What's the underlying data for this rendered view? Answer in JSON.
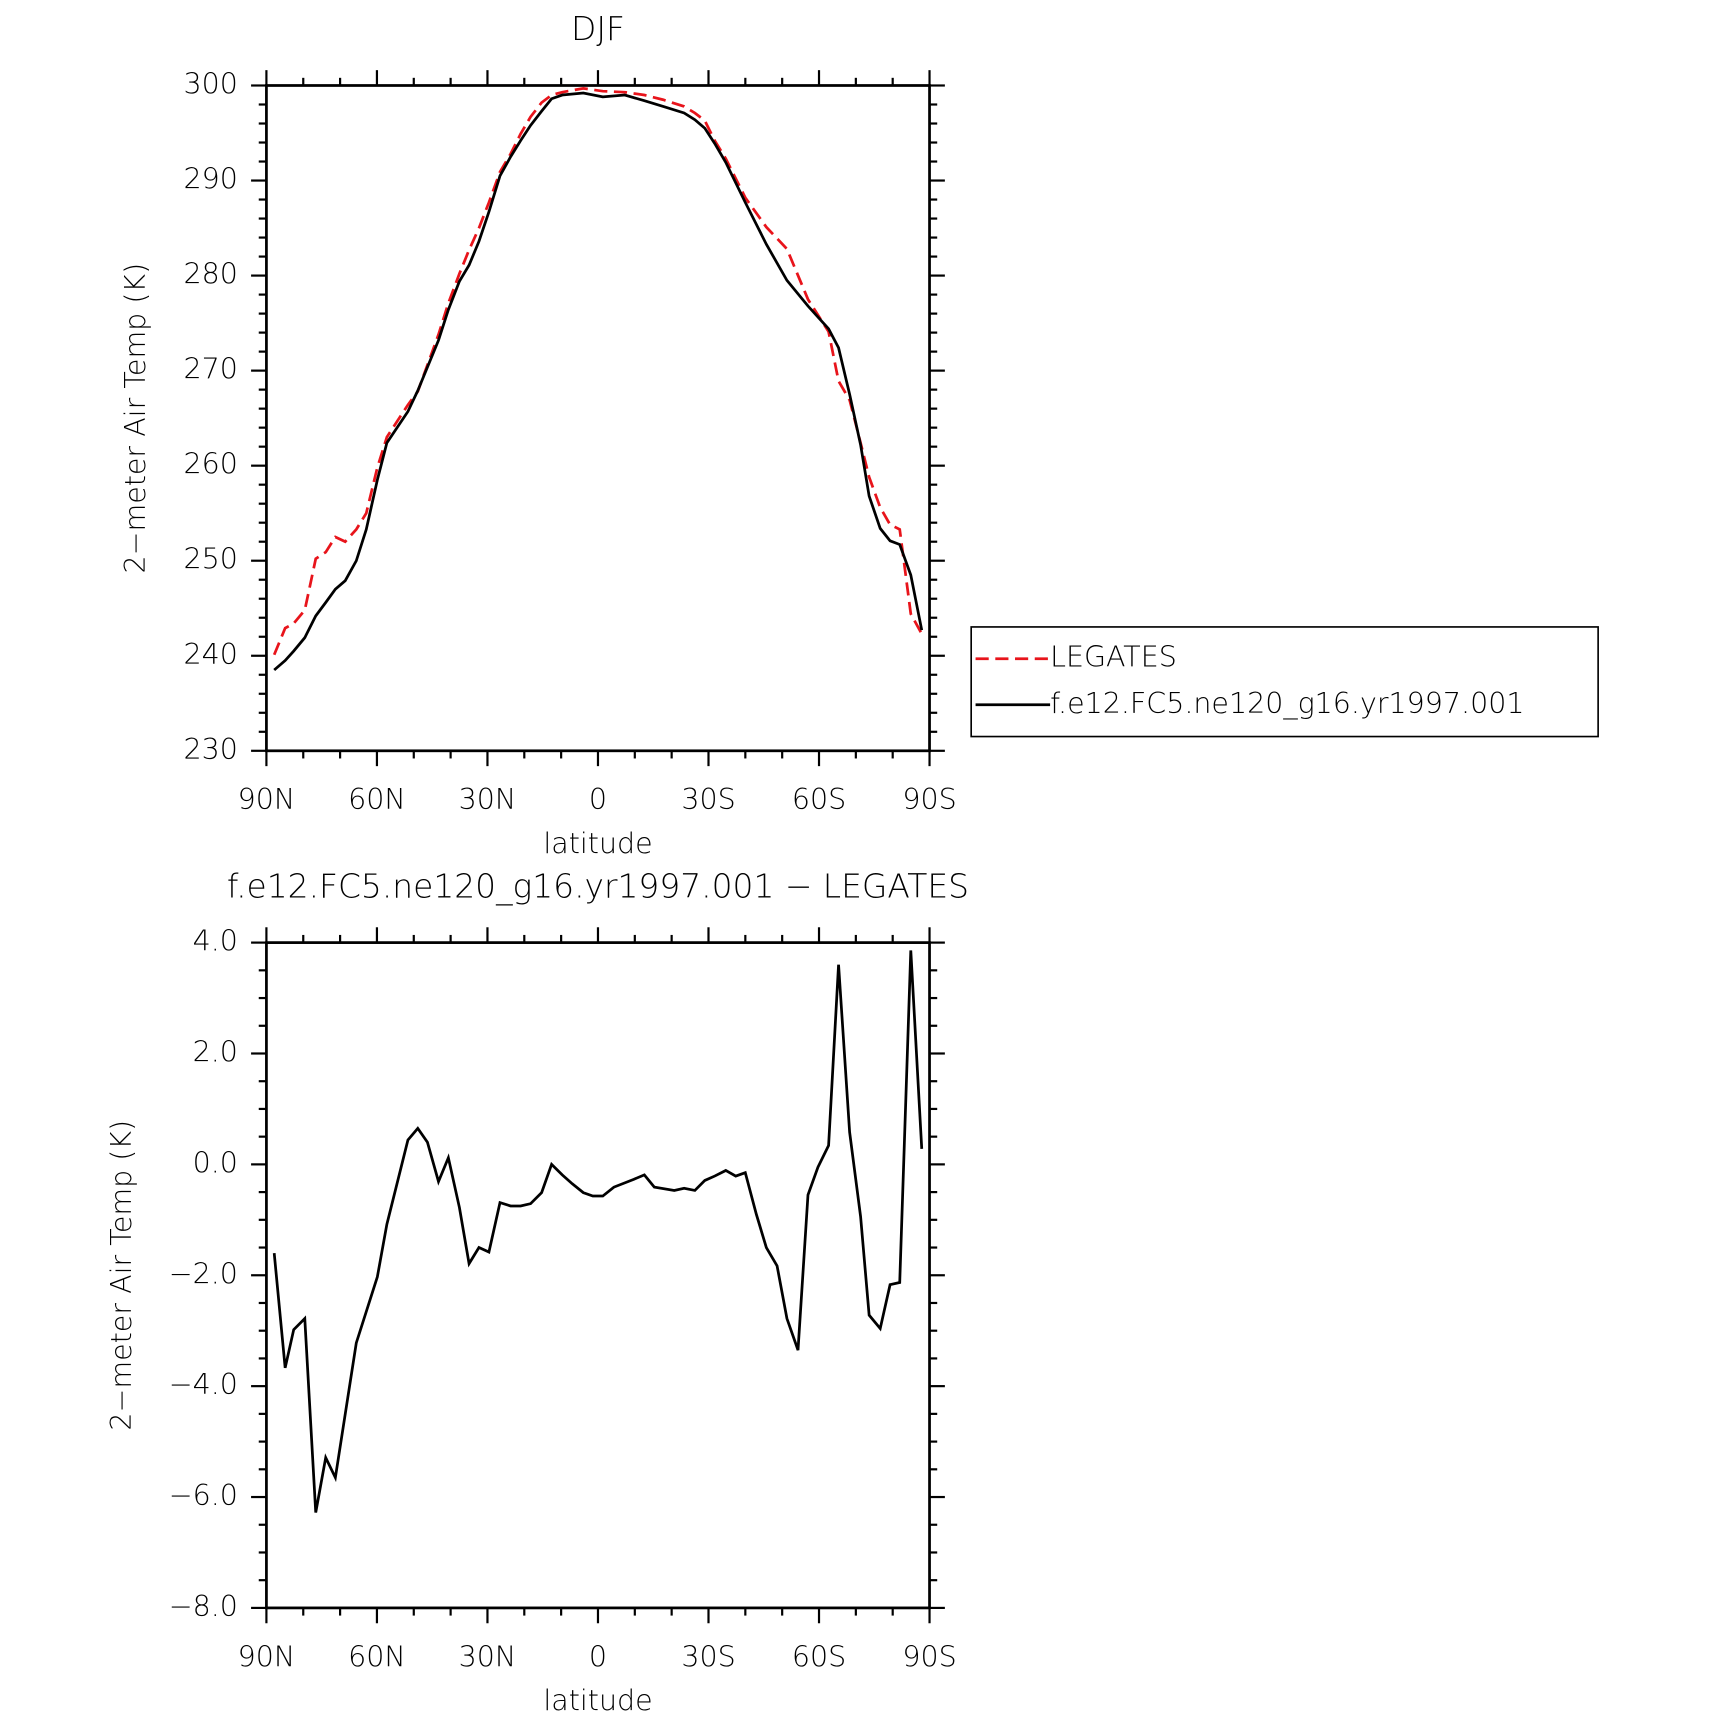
{
  "chart_data": [
    {
      "type": "line",
      "title": "DJF",
      "x_label": "latitude",
      "y_label": "2−meter Air Temp (K)",
      "xlim": [
        90,
        -90
      ],
      "xticks": [
        {
          "value": 90,
          "label": "90N"
        },
        {
          "value": 60,
          "label": "60N"
        },
        {
          "value": 30,
          "label": "30N"
        },
        0,
        {
          "value": -30,
          "label": "30S"
        },
        {
          "value": -60,
          "label": "60S"
        },
        {
          "value": -90,
          "label": "90S"
        }
      ],
      "ylim": [
        230,
        300
      ],
      "yticks": [
        230,
        240,
        250,
        260,
        270,
        280,
        290,
        300
      ],
      "legend": "right",
      "x": [
        87.9,
        84.9,
        82.6,
        79.6,
        76.6,
        73.9,
        71.3,
        68.6,
        65.6,
        62.9,
        59.9,
        57.3,
        51.6,
        48.9,
        43.3,
        40.6,
        37.6,
        35.0,
        32.3,
        29.6,
        26.6,
        23.7,
        21.0,
        18.3,
        15.3,
        12.6,
        9.7,
        4.0,
        -1.3,
        -7.3,
        -12.6,
        -17.7,
        -23.4,
        -26.3,
        -29.0,
        -31.7,
        -34.7,
        -40.0,
        -45.7,
        -51.3,
        -57.0,
        -62.6,
        -65.3,
        -68.3,
        -71.3,
        -73.6,
        -76.6,
        -79.3,
        -81.9,
        -84.9,
        -87.9
      ],
      "series": [
        {
          "name": "LEGATES",
          "color": "#e8141b",
          "linestyle": "dashed",
          "values": [
            240.1,
            242.9,
            243.4,
            244.8,
            250.2,
            250.9,
            252.5,
            252.0,
            253.3,
            255.0,
            259.8,
            263.0,
            266.4,
            267.8,
            273.8,
            277.1,
            280.2,
            282.7,
            285.0,
            287.7,
            290.9,
            292.8,
            294.9,
            296.7,
            298.2,
            299.0,
            299.3,
            299.7,
            299.4,
            299.3,
            299.0,
            298.5,
            297.8,
            297.1,
            296.3,
            294.2,
            292.3,
            288.2,
            285.1,
            282.8,
            277.5,
            274.1,
            268.9,
            266.9,
            262.4,
            258.8,
            255.6,
            253.8,
            253.3,
            244.4,
            242.3
          ]
        },
        {
          "name": "f.e12.FC5.ne120_g16.yr1997.001",
          "color": "#000000",
          "linestyle": "solid",
          "values": [
            238.5,
            239.5,
            240.5,
            241.9,
            244.2,
            245.6,
            247.0,
            247.9,
            250.0,
            253.3,
            258.5,
            262.4,
            265.7,
            267.9,
            273.2,
            276.4,
            279.4,
            281.1,
            283.6,
            286.7,
            290.5,
            292.5,
            294.2,
            295.8,
            297.3,
            298.6,
            299.0,
            299.2,
            298.8,
            299.0,
            298.4,
            297.8,
            297.1,
            296.4,
            295.5,
            293.9,
            291.9,
            287.7,
            283.3,
            279.5,
            276.8,
            274.4,
            272.4,
            267.5,
            262.2,
            256.8,
            253.4,
            252.1,
            251.7,
            248.5,
            242.7
          ]
        }
      ]
    },
    {
      "type": "line",
      "title": "f.e12.FC5.ne120_g16.yr1997.001 − LEGATES",
      "x_label": "latitude",
      "y_label": "2−meter Air Temp (K)",
      "xlim": [
        90,
        -90
      ],
      "xticks": [
        {
          "value": 90,
          "label": "90N"
        },
        {
          "value": 60,
          "label": "60N"
        },
        {
          "value": 30,
          "label": "30N"
        },
        0,
        {
          "value": -30,
          "label": "30S"
        },
        {
          "value": -60,
          "label": "60S"
        },
        {
          "value": -90,
          "label": "90S"
        }
      ],
      "ylim": [
        -8,
        4
      ],
      "yticks": [
        {
          "value": -8,
          "label": "−8.0"
        },
        {
          "value": -6,
          "label": "−6.0"
        },
        {
          "value": -4,
          "label": "−4.0"
        },
        {
          "value": -2,
          "label": "−2.0"
        },
        {
          "value": 0,
          "label": "0.0"
        },
        {
          "value": 2,
          "label": "2.0"
        },
        {
          "value": 4,
          "label": "4.0"
        }
      ],
      "color": "#000000",
      "x": [
        87.9,
        84.9,
        82.6,
        79.6,
        76.6,
        73.9,
        71.3,
        65.6,
        59.9,
        57.3,
        51.6,
        48.9,
        46.3,
        43.3,
        40.6,
        37.6,
        35.0,
        32.3,
        29.6,
        26.6,
        23.7,
        21.0,
        18.3,
        15.3,
        12.6,
        9.7,
        7.0,
        4.0,
        1.4,
        -1.3,
        -4.3,
        -9.7,
        -12.6,
        -15.3,
        -20.7,
        -23.4,
        -26.3,
        -29.0,
        -31.7,
        -34.7,
        -37.4,
        -40.0,
        -43.0,
        -45.7,
        -48.6,
        -51.3,
        -54.3,
        -57.0,
        -59.7,
        -62.6,
        -65.3,
        -68.3,
        -71.3,
        -73.6,
        -76.6,
        -79.3,
        -81.9,
        -84.9,
        -87.9
      ],
      "values": [
        -1.6,
        -3.67,
        -2.98,
        -2.78,
        -6.28,
        -5.29,
        -5.65,
        -3.22,
        -2.03,
        -1.08,
        0.44,
        0.65,
        0.4,
        -0.31,
        0.12,
        -0.78,
        -1.79,
        -1.5,
        -1.58,
        -0.69,
        -0.75,
        -0.75,
        -0.71,
        -0.51,
        0.0,
        -0.19,
        -0.35,
        -0.51,
        -0.57,
        -0.57,
        -0.41,
        -0.27,
        -0.19,
        -0.41,
        -0.47,
        -0.43,
        -0.47,
        -0.29,
        -0.21,
        -0.11,
        -0.21,
        -0.15,
        -0.9,
        -1.5,
        -1.83,
        -2.78,
        -3.35,
        -0.55,
        -0.05,
        0.34,
        3.6,
        0.58,
        -0.94,
        -2.72,
        -2.96,
        -2.17,
        -2.13,
        3.86,
        0.28
      ]
    }
  ]
}
